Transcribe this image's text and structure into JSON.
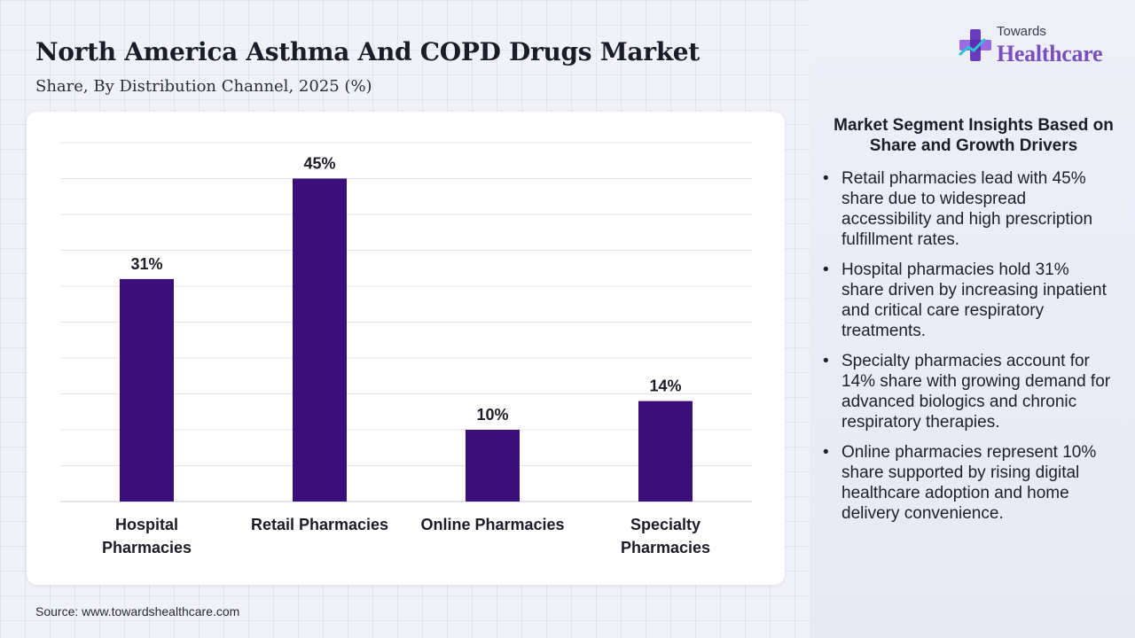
{
  "header": {
    "title": "North America Asthma And COPD Drugs Market",
    "subtitle": "Share, By Distribution Channel, 2025 (%)"
  },
  "logo": {
    "top_text": "Towards",
    "bottom_text": "Healthcare",
    "icon": "plus-cross-logo-icon"
  },
  "chart_data": {
    "type": "bar",
    "title": "",
    "xlabel": "",
    "ylabel": "",
    "categories": [
      [
        "Hospital",
        "Pharmacies"
      ],
      [
        "Retail Pharmacies"
      ],
      [
        "Online Pharmacies"
      ],
      [
        "Specialty",
        "Pharmacies"
      ]
    ],
    "values": [
      31,
      45,
      10,
      14
    ],
    "value_labels": [
      "31%",
      "45%",
      "10%",
      "14%"
    ],
    "ylim": [
      0,
      50
    ],
    "grid": true,
    "bar_color": "#3b0f7a"
  },
  "insights": {
    "title": "Market Segment Insights Based on Share and Growth Drivers",
    "bullet": "•",
    "items": [
      "Retail pharmacies lead with 45% share due to widespread accessibility and high prescription fulfillment rates.",
      "Hospital pharmacies hold 31% share driven by increasing inpatient and critical care respiratory treatments.",
      "Specialty pharmacies account for 14% share with growing demand for advanced biologics and chronic respiratory therapies.",
      "Online pharmacies represent 10% share supported by rising digital healthcare adoption and home delivery convenience."
    ]
  },
  "footer": {
    "source": "Source: www.towardshealthcare.com"
  },
  "colors": {
    "bar": "#3b0f7a",
    "logo_accent": "#7a4fbf"
  }
}
